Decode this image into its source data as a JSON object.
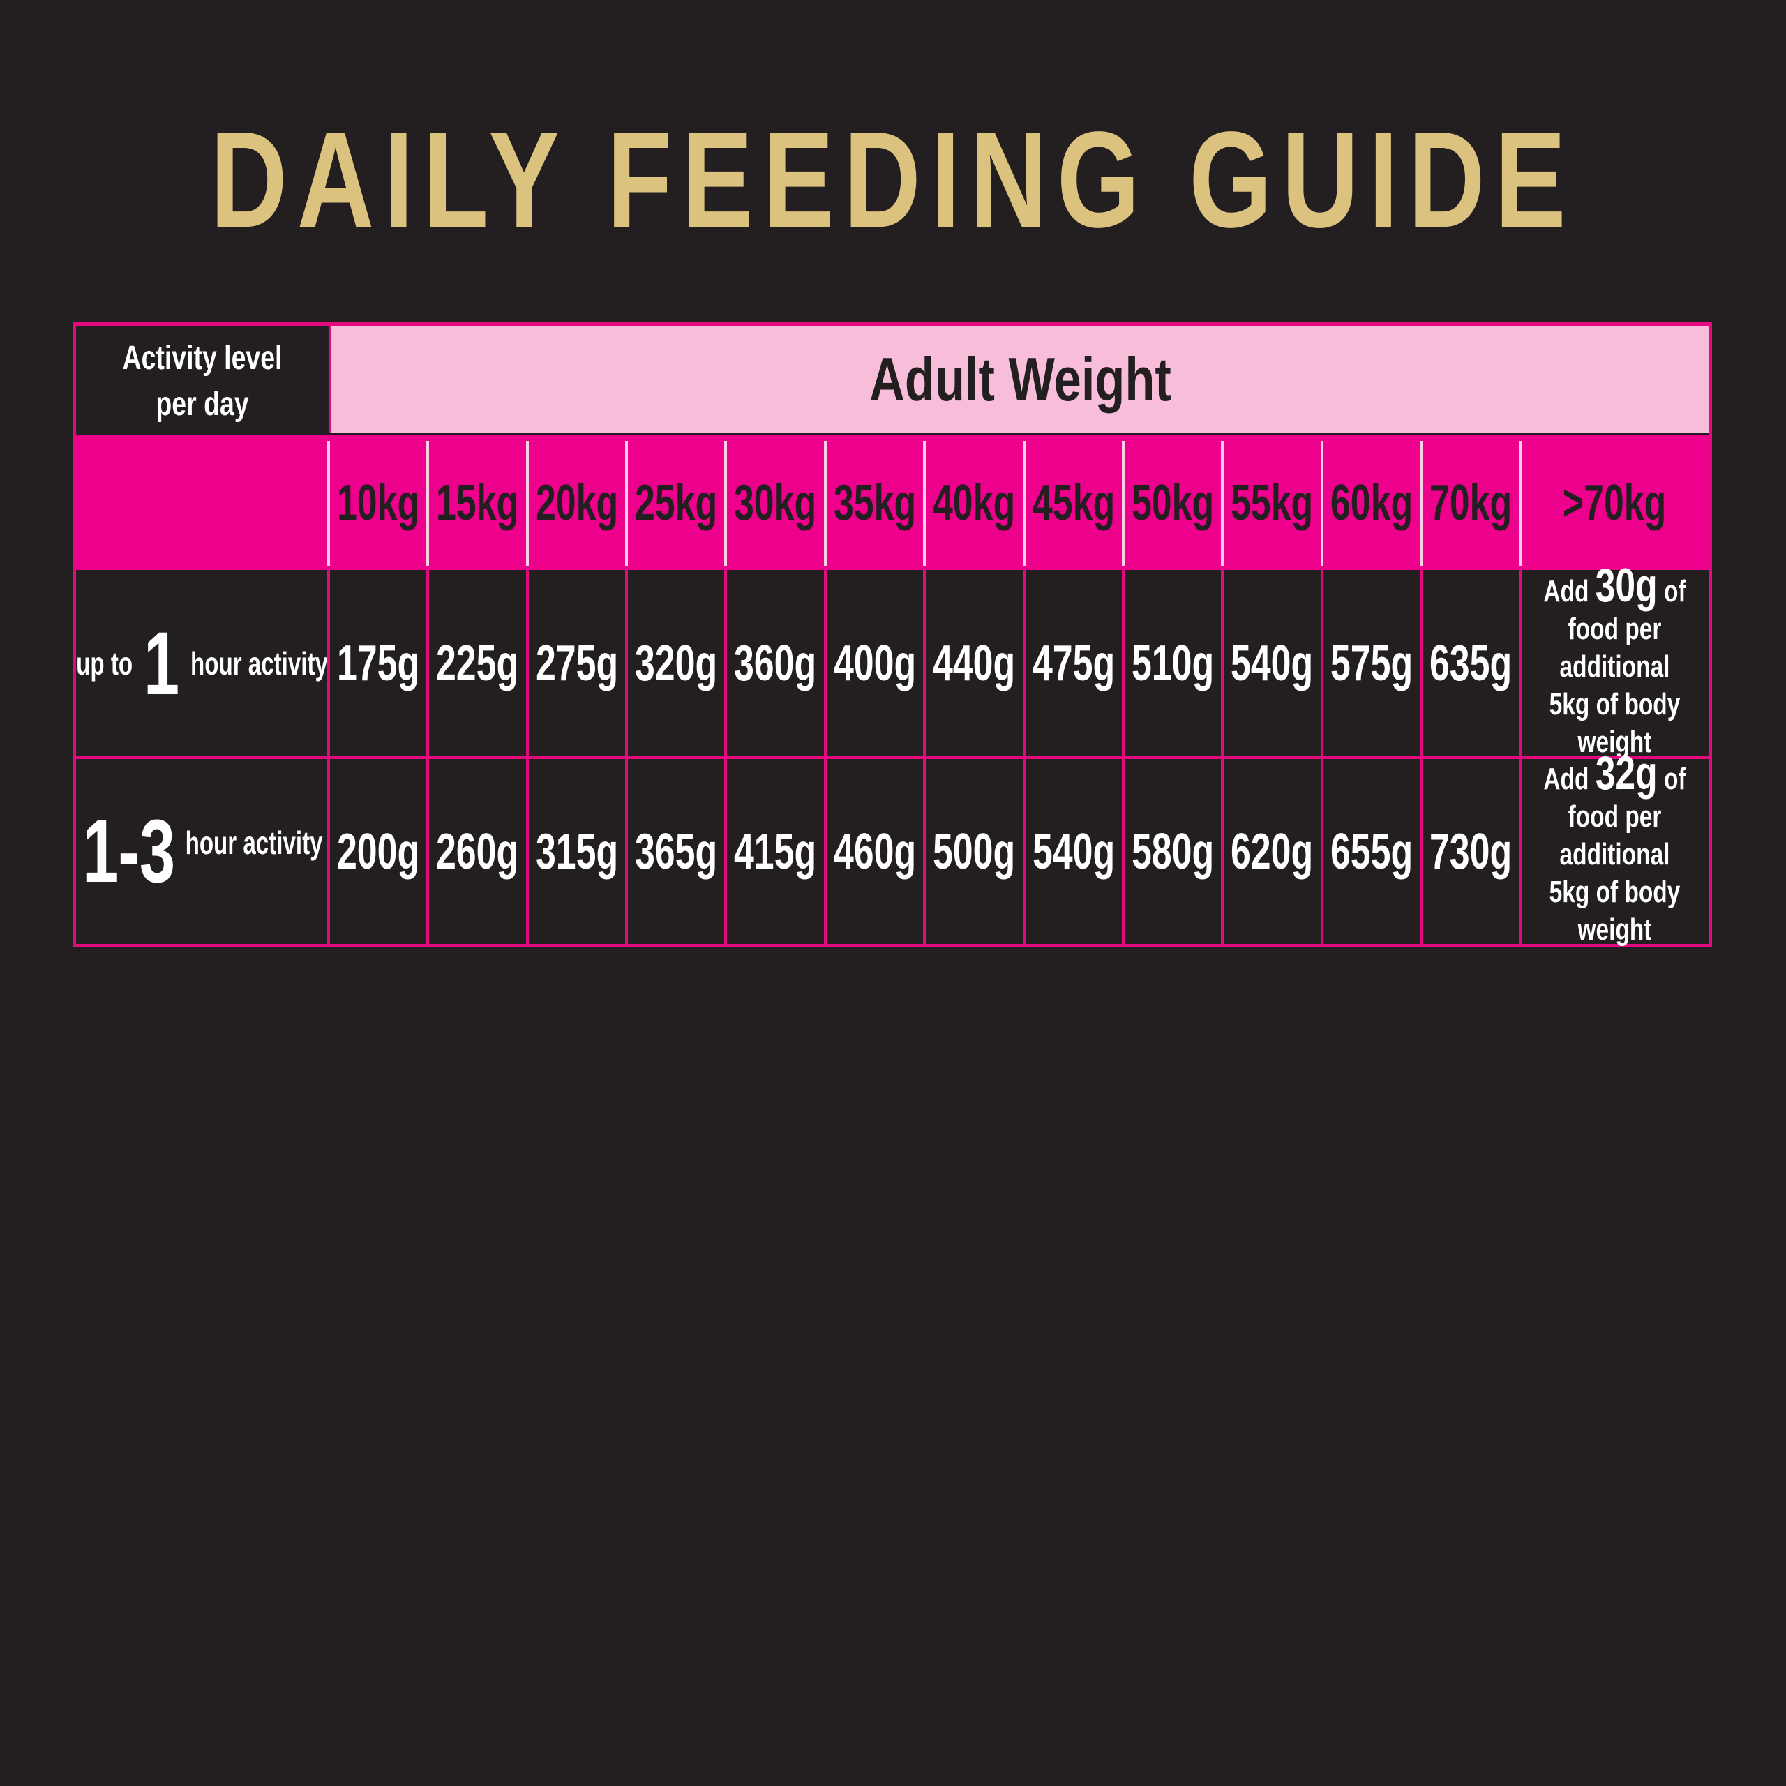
{
  "title": "DAILY FEEDING GUIDE",
  "table": {
    "activity_header": "Activity level per day",
    "weight_header": "Adult Weight",
    "weights": [
      "10kg",
      "15kg",
      "20kg",
      "25kg",
      "30kg",
      "35kg",
      "40kg",
      "45kg",
      "50kg",
      "55kg",
      "60kg",
      "70kg",
      ">70kg"
    ],
    "rows": [
      {
        "prefix": "up to",
        "hours": "1",
        "suffix": "hour activity",
        "values": [
          "175g",
          "225g",
          "275g",
          "320g",
          "360g",
          "400g",
          "440g",
          "475g",
          "510g",
          "540g",
          "575g",
          "635g"
        ],
        "extra_add": "Add",
        "extra_amount": "30g",
        "extra_of": "of",
        "extra_rest": "food per additional 5kg of body weight"
      },
      {
        "prefix": "",
        "hours": "1-3",
        "suffix": "hour activity",
        "values": [
          "200g",
          "260g",
          "315g",
          "365g",
          "415g",
          "460g",
          "500g",
          "540g",
          "580g",
          "620g",
          "655g",
          "730g"
        ],
        "extra_add": "Add",
        "extra_amount": "32g",
        "extra_of": "of",
        "extra_rest": "food per additional 5kg of body weight"
      }
    ]
  },
  "colors": {
    "background": "#231f20",
    "title": "#dcc27f",
    "magenta": "#ec008c",
    "pink": "#f8bed9",
    "text_light": "#ffffff",
    "text_dark": "#231f20"
  }
}
